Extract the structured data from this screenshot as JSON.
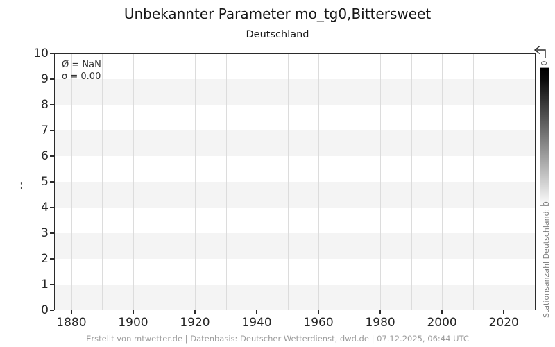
{
  "header": {
    "title": "Unbekannter Parameter mo_tg0,Bittersweet",
    "subtitle": "Deutschland"
  },
  "annotation": {
    "mean": "Ø = NaN",
    "sigma": "σ = 0.00"
  },
  "chart_data": {
    "type": "line",
    "title": "Unbekannter Parameter mo_tg0,Bittersweet",
    "subtitle": "Deutschland",
    "xlabel": "",
    "ylabel": "--",
    "xlim": [
      1874.4,
      2030.3
    ],
    "ylim": [
      0,
      10
    ],
    "yticks": [
      0,
      1,
      2,
      3,
      4,
      5,
      6,
      7,
      8,
      9,
      10
    ],
    "xticks": [
      1880,
      1900,
      1920,
      1940,
      1960,
      1980,
      2000,
      2020
    ],
    "xgridlines": [
      1880,
      1890,
      1900,
      1910,
      1920,
      1930,
      1940,
      1950,
      1960,
      1970,
      1980,
      1990,
      2000,
      2010,
      2020
    ],
    "series": [],
    "data_note": "empty plot - no data drawn (mean NaN, sigma 0.00)",
    "annotations": [
      "Ø = NaN",
      "σ = 0.00"
    ],
    "grid": "vertical gridlines only",
    "legend_position": "none",
    "background_bands": {
      "color": "#f4f4f4",
      "intervals": [
        [
          0,
          1
        ],
        [
          2,
          3
        ],
        [
          4,
          5
        ],
        [
          6,
          7
        ],
        [
          8,
          9
        ]
      ]
    }
  },
  "colorbar": {
    "top_tick_label": "0",
    "label": "Stationsanzahl Deutschland: 0",
    "gradient_top": "#000000",
    "gradient_bottom": "#fdfdfd"
  },
  "footer": {
    "credit": "Erstellt von mtwetter.de | Datenbasis: Deutscher Wetterdienst, dwd.de | 07.12.2025, 06:44 UTC"
  }
}
